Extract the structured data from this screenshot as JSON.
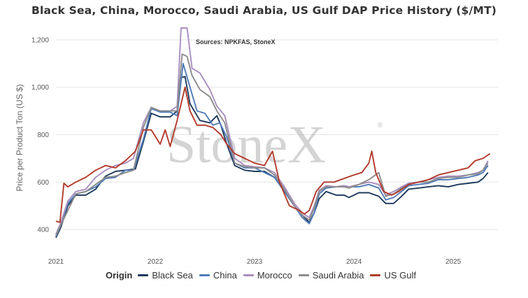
{
  "title": "Black Sea, China, Morocco, Saudi Arabia, US Gulf DAP Price History ($/MT)",
  "source_note": "Sources: NPKFAS, StoneX",
  "watermark": "StoneX",
  "watermark_mark": "®",
  "legend_title": "Origin",
  "chart_data": {
    "type": "line",
    "title": "Black Sea, China, Morocco, Saudi Arabia, US Gulf DAP Price History ($/MT)",
    "xlabel": "",
    "ylabel": "Price per Product Ton (US $)",
    "xlim": [
      2021.0,
      2025.45
    ],
    "ylim": [
      350,
      1250
    ],
    "x_ticks": [
      2021,
      2022,
      2023,
      2024,
      2025
    ],
    "x_tick_labels": [
      "2021",
      "2022",
      "2023",
      "2024",
      "2025"
    ],
    "y_ticks": [
      400,
      600,
      800,
      1000,
      1200
    ],
    "y_tick_labels": [
      "400",
      "600",
      "800",
      "1,000",
      "1,200"
    ],
    "grid": "horizontal",
    "legend_position": "bottom",
    "series": [
      {
        "name": "Black Sea",
        "color": "#1e3a5c",
        "points": [
          [
            2021.0,
            365
          ],
          [
            2021.05,
            410
          ],
          [
            2021.12,
            500
          ],
          [
            2021.2,
            545
          ],
          [
            2021.3,
            545
          ],
          [
            2021.4,
            570
          ],
          [
            2021.5,
            625
          ],
          [
            2021.6,
            645
          ],
          [
            2021.7,
            650
          ],
          [
            2021.8,
            655
          ],
          [
            2021.88,
            770
          ],
          [
            2021.96,
            890
          ],
          [
            2022.05,
            875
          ],
          [
            2022.15,
            875
          ],
          [
            2022.22,
            900
          ],
          [
            2022.25,
            1040
          ],
          [
            2022.3,
            1045
          ],
          [
            2022.35,
            930
          ],
          [
            2022.45,
            860
          ],
          [
            2022.55,
            850
          ],
          [
            2022.62,
            880
          ],
          [
            2022.66,
            840
          ],
          [
            2022.72,
            760
          ],
          [
            2022.8,
            670
          ],
          [
            2022.9,
            650
          ],
          [
            2023.0,
            645
          ],
          [
            2023.1,
            645
          ],
          [
            2023.2,
            620
          ],
          [
            2023.3,
            560
          ],
          [
            2023.4,
            500
          ],
          [
            2023.48,
            460
          ],
          [
            2023.55,
            430
          ],
          [
            2023.6,
            470
          ],
          [
            2023.65,
            530
          ],
          [
            2023.72,
            560
          ],
          [
            2023.82,
            545
          ],
          [
            2023.9,
            545
          ],
          [
            2023.95,
            535
          ],
          [
            2024.05,
            555
          ],
          [
            2024.15,
            555
          ],
          [
            2024.25,
            540
          ],
          [
            2024.32,
            510
          ],
          [
            2024.4,
            510
          ],
          [
            2024.48,
            540
          ],
          [
            2024.55,
            570
          ],
          [
            2024.65,
            575
          ],
          [
            2024.75,
            580
          ],
          [
            2024.85,
            585
          ],
          [
            2024.95,
            580
          ],
          [
            2025.05,
            590
          ],
          [
            2025.15,
            595
          ],
          [
            2025.25,
            600
          ],
          [
            2025.3,
            615
          ],
          [
            2025.35,
            640
          ]
        ]
      },
      {
        "name": "China",
        "color": "#4f7cb8",
        "points": [
          [
            2021.0,
            370
          ],
          [
            2021.05,
            420
          ],
          [
            2021.12,
            510
          ],
          [
            2021.2,
            550
          ],
          [
            2021.3,
            560
          ],
          [
            2021.4,
            580
          ],
          [
            2021.5,
            615
          ],
          [
            2021.6,
            620
          ],
          [
            2021.7,
            650
          ],
          [
            2021.78,
            650
          ],
          [
            2021.88,
            780
          ],
          [
            2021.96,
            910
          ],
          [
            2022.05,
            895
          ],
          [
            2022.15,
            895
          ],
          [
            2022.22,
            880
          ],
          [
            2022.28,
            1100
          ],
          [
            2022.35,
            1000
          ],
          [
            2022.42,
            900
          ],
          [
            2022.5,
            890
          ],
          [
            2022.58,
            840
          ],
          [
            2022.65,
            850
          ],
          [
            2022.72,
            790
          ],
          [
            2022.8,
            680
          ],
          [
            2022.9,
            660
          ],
          [
            2023.0,
            660
          ],
          [
            2023.1,
            640
          ],
          [
            2023.2,
            620
          ],
          [
            2023.3,
            560
          ],
          [
            2023.4,
            500
          ],
          [
            2023.48,
            450
          ],
          [
            2023.55,
            425
          ],
          [
            2023.6,
            470
          ],
          [
            2023.65,
            550
          ],
          [
            2023.72,
            575
          ],
          [
            2023.82,
            580
          ],
          [
            2023.9,
            585
          ],
          [
            2023.95,
            580
          ],
          [
            2024.05,
            580
          ],
          [
            2024.15,
            590
          ],
          [
            2024.25,
            575
          ],
          [
            2024.32,
            525
          ],
          [
            2024.4,
            535
          ],
          [
            2024.48,
            560
          ],
          [
            2024.55,
            585
          ],
          [
            2024.65,
            590
          ],
          [
            2024.75,
            595
          ],
          [
            2024.85,
            610
          ],
          [
            2024.95,
            610
          ],
          [
            2025.05,
            615
          ],
          [
            2025.15,
            620
          ],
          [
            2025.25,
            630
          ],
          [
            2025.3,
            640
          ],
          [
            2025.35,
            670
          ]
        ]
      },
      {
        "name": "Morocco",
        "color": "#a98fc0",
        "points": [
          [
            2021.0,
            380
          ],
          [
            2021.05,
            430
          ],
          [
            2021.12,
            520
          ],
          [
            2021.2,
            560
          ],
          [
            2021.3,
            570
          ],
          [
            2021.4,
            620
          ],
          [
            2021.5,
            650
          ],
          [
            2021.6,
            670
          ],
          [
            2021.7,
            680
          ],
          [
            2021.78,
            700
          ],
          [
            2021.88,
            850
          ],
          [
            2021.96,
            915
          ],
          [
            2022.05,
            900
          ],
          [
            2022.15,
            900
          ],
          [
            2022.22,
            920
          ],
          [
            2022.26,
            1250
          ],
          [
            2022.32,
            1250
          ],
          [
            2022.37,
            1080
          ],
          [
            2022.45,
            1060
          ],
          [
            2022.55,
            990
          ],
          [
            2022.62,
            920
          ],
          [
            2022.7,
            880
          ],
          [
            2022.8,
            700
          ],
          [
            2022.9,
            670
          ],
          [
            2023.0,
            665
          ],
          [
            2023.1,
            660
          ],
          [
            2023.2,
            640
          ],
          [
            2023.3,
            580
          ],
          [
            2023.4,
            510
          ],
          [
            2023.48,
            470
          ],
          [
            2023.55,
            450
          ],
          [
            2023.6,
            500
          ],
          [
            2023.65,
            565
          ],
          [
            2023.72,
            585
          ],
          [
            2023.82,
            580
          ],
          [
            2023.9,
            585
          ],
          [
            2023.95,
            580
          ],
          [
            2024.05,
            590
          ],
          [
            2024.15,
            600
          ],
          [
            2024.25,
            590
          ],
          [
            2024.32,
            545
          ],
          [
            2024.4,
            560
          ],
          [
            2024.48,
            580
          ],
          [
            2024.55,
            595
          ],
          [
            2024.65,
            600
          ],
          [
            2024.75,
            610
          ],
          [
            2024.85,
            620
          ],
          [
            2024.95,
            625
          ],
          [
            2025.05,
            625
          ],
          [
            2025.15,
            630
          ],
          [
            2025.25,
            640
          ],
          [
            2025.3,
            650
          ],
          [
            2025.35,
            690
          ]
        ]
      },
      {
        "name": "Saudi Arabia",
        "color": "#8c8c8c",
        "points": [
          [
            2021.0,
            375
          ],
          [
            2021.05,
            420
          ],
          [
            2021.12,
            480
          ],
          [
            2021.2,
            550
          ],
          [
            2021.3,
            560
          ],
          [
            2021.4,
            590
          ],
          [
            2021.5,
            620
          ],
          [
            2021.6,
            625
          ],
          [
            2021.7,
            640
          ],
          [
            2021.78,
            650
          ],
          [
            2021.88,
            830
          ],
          [
            2021.96,
            915
          ],
          [
            2022.05,
            900
          ],
          [
            2022.15,
            900
          ],
          [
            2022.22,
            900
          ],
          [
            2022.27,
            1140
          ],
          [
            2022.32,
            1130
          ],
          [
            2022.37,
            1050
          ],
          [
            2022.45,
            990
          ],
          [
            2022.55,
            960
          ],
          [
            2022.62,
            900
          ],
          [
            2022.7,
            850
          ],
          [
            2022.8,
            680
          ],
          [
            2022.9,
            665
          ],
          [
            2023.0,
            660
          ],
          [
            2023.1,
            660
          ],
          [
            2023.2,
            630
          ],
          [
            2023.3,
            570
          ],
          [
            2023.4,
            500
          ],
          [
            2023.48,
            460
          ],
          [
            2023.55,
            440
          ],
          [
            2023.6,
            490
          ],
          [
            2023.65,
            560
          ],
          [
            2023.72,
            580
          ],
          [
            2023.82,
            580
          ],
          [
            2023.9,
            580
          ],
          [
            2023.95,
            575
          ],
          [
            2024.05,
            590
          ],
          [
            2024.15,
            610
          ],
          [
            2024.25,
            640
          ],
          [
            2024.32,
            540
          ],
          [
            2024.4,
            550
          ],
          [
            2024.48,
            575
          ],
          [
            2024.55,
            590
          ],
          [
            2024.65,
            600
          ],
          [
            2024.75,
            600
          ],
          [
            2024.85,
            615
          ],
          [
            2024.95,
            620
          ],
          [
            2025.05,
            620
          ],
          [
            2025.15,
            630
          ],
          [
            2025.25,
            635
          ],
          [
            2025.3,
            650
          ],
          [
            2025.35,
            680
          ]
        ]
      },
      {
        "name": "US Gulf",
        "color": "#b23a2c",
        "points": [
          [
            2021.0,
            435
          ],
          [
            2021.04,
            430
          ],
          [
            2021.08,
            595
          ],
          [
            2021.12,
            580
          ],
          [
            2021.2,
            600
          ],
          [
            2021.3,
            620
          ],
          [
            2021.4,
            650
          ],
          [
            2021.5,
            670
          ],
          [
            2021.6,
            660
          ],
          [
            2021.7,
            690
          ],
          [
            2021.8,
            730
          ],
          [
            2021.88,
            820
          ],
          [
            2021.96,
            820
          ],
          [
            2022.05,
            760
          ],
          [
            2022.1,
            820
          ],
          [
            2022.15,
            750
          ],
          [
            2022.22,
            860
          ],
          [
            2022.3,
            1000
          ],
          [
            2022.35,
            900
          ],
          [
            2022.42,
            840
          ],
          [
            2022.5,
            840
          ],
          [
            2022.58,
            830
          ],
          [
            2022.66,
            800
          ],
          [
            2022.72,
            760
          ],
          [
            2022.8,
            720
          ],
          [
            2022.9,
            700
          ],
          [
            2023.0,
            680
          ],
          [
            2023.1,
            670
          ],
          [
            2023.18,
            730
          ],
          [
            2023.25,
            600
          ],
          [
            2023.35,
            500
          ],
          [
            2023.45,
            480
          ],
          [
            2023.5,
            465
          ],
          [
            2023.55,
            480
          ],
          [
            2023.62,
            560
          ],
          [
            2023.7,
            600
          ],
          [
            2023.8,
            600
          ],
          [
            2023.9,
            615
          ],
          [
            2024.0,
            630
          ],
          [
            2024.08,
            640
          ],
          [
            2024.15,
            680
          ],
          [
            2024.18,
            730
          ],
          [
            2024.22,
            640
          ],
          [
            2024.3,
            560
          ],
          [
            2024.38,
            545
          ],
          [
            2024.45,
            560
          ],
          [
            2024.55,
            590
          ],
          [
            2024.65,
            600
          ],
          [
            2024.75,
            610
          ],
          [
            2024.85,
            630
          ],
          [
            2024.95,
            640
          ],
          [
            2025.05,
            650
          ],
          [
            2025.15,
            660
          ],
          [
            2025.22,
            690
          ],
          [
            2025.3,
            700
          ],
          [
            2025.37,
            720
          ]
        ]
      }
    ]
  }
}
